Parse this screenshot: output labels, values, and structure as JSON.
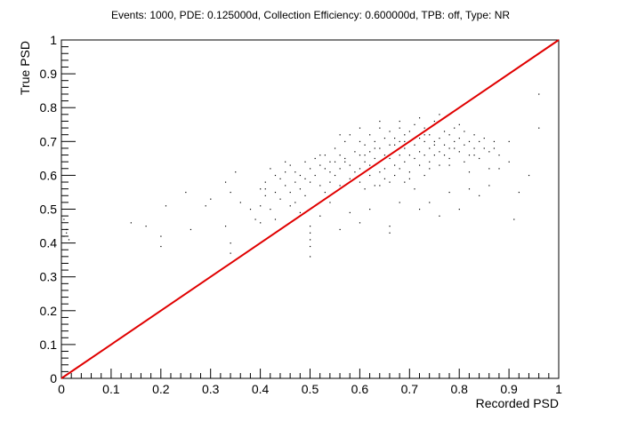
{
  "chart_data": {
    "type": "scatter",
    "title": "Events: 1000, PDE: 0.125000d, Collection Efficiency: 0.600000d, TPB: off, Type: NR",
    "xlabel": "Recorded PSD",
    "ylabel": "True PSD",
    "xlim": [
      0,
      1
    ],
    "ylim": [
      0,
      1
    ],
    "xticks": [
      "0",
      "0.1",
      "0.2",
      "0.3",
      "0.4",
      "0.5",
      "0.6",
      "0.7",
      "0.8",
      "0.9",
      "1"
    ],
    "yticks": [
      "0",
      "0.1",
      "0.2",
      "0.3",
      "0.4",
      "0.5",
      "0.6",
      "0.7",
      "0.8",
      "0.9",
      "1"
    ],
    "grid": false,
    "legend": "none",
    "marker_color": "#000000",
    "line_color": "#e00000",
    "series": [
      {
        "type": "scatter",
        "points": [
          [
            0.005,
            0.47
          ],
          [
            0.005,
            0.42
          ],
          [
            0.01,
            0.44
          ],
          [
            0.01,
            0.43
          ],
          [
            0.015,
            0.41
          ],
          [
            0.14,
            0.46
          ],
          [
            0.17,
            0.45
          ],
          [
            0.2,
            0.42
          ],
          [
            0.2,
            0.39
          ],
          [
            0.21,
            0.51
          ],
          [
            0.25,
            0.55
          ],
          [
            0.26,
            0.44
          ],
          [
            0.29,
            0.51
          ],
          [
            0.3,
            0.53
          ],
          [
            0.33,
            0.58
          ],
          [
            0.33,
            0.45
          ],
          [
            0.34,
            0.4
          ],
          [
            0.34,
            0.37
          ],
          [
            0.34,
            0.55
          ],
          [
            0.35,
            0.61
          ],
          [
            0.36,
            0.52
          ],
          [
            0.39,
            0.47
          ],
          [
            0.4,
            0.51
          ],
          [
            0.4,
            0.56
          ],
          [
            0.41,
            0.58
          ],
          [
            0.41,
            0.54
          ],
          [
            0.42,
            0.5
          ],
          [
            0.42,
            0.62
          ],
          [
            0.43,
            0.55
          ],
          [
            0.43,
            0.47
          ],
          [
            0.44,
            0.59
          ],
          [
            0.44,
            0.53
          ],
          [
            0.45,
            0.57
          ],
          [
            0.45,
            0.61
          ],
          [
            0.46,
            0.55
          ],
          [
            0.46,
            0.63
          ],
          [
            0.47,
            0.58
          ],
          [
            0.47,
            0.52
          ],
          [
            0.48,
            0.6
          ],
          [
            0.48,
            0.56
          ],
          [
            0.49,
            0.64
          ],
          [
            0.49,
            0.54
          ],
          [
            0.5,
            0.62
          ],
          [
            0.5,
            0.58
          ],
          [
            0.5,
            0.45
          ],
          [
            0.5,
            0.43
          ],
          [
            0.5,
            0.41
          ],
          [
            0.5,
            0.39
          ],
          [
            0.5,
            0.36
          ],
          [
            0.51,
            0.65
          ],
          [
            0.51,
            0.6
          ],
          [
            0.52,
            0.57
          ],
          [
            0.52,
            0.63
          ],
          [
            0.53,
            0.55
          ],
          [
            0.53,
            0.66
          ],
          [
            0.54,
            0.61
          ],
          [
            0.54,
            0.58
          ],
          [
            0.55,
            0.64
          ],
          [
            0.55,
            0.68
          ],
          [
            0.55,
            0.6
          ],
          [
            0.56,
            0.62
          ],
          [
            0.56,
            0.57
          ],
          [
            0.57,
            0.65
          ],
          [
            0.57,
            0.7
          ],
          [
            0.58,
            0.63
          ],
          [
            0.58,
            0.59
          ],
          [
            0.59,
            0.67
          ],
          [
            0.59,
            0.61
          ],
          [
            0.6,
            0.66
          ],
          [
            0.6,
            0.62
          ],
          [
            0.6,
            0.58
          ],
          [
            0.61,
            0.69
          ],
          [
            0.61,
            0.64
          ],
          [
            0.61,
            0.56
          ],
          [
            0.62,
            0.67
          ],
          [
            0.62,
            0.63
          ],
          [
            0.62,
            0.6
          ],
          [
            0.62,
            0.72
          ],
          [
            0.63,
            0.65
          ],
          [
            0.63,
            0.7
          ],
          [
            0.63,
            0.57
          ],
          [
            0.64,
            0.68
          ],
          [
            0.64,
            0.64
          ],
          [
            0.64,
            0.61
          ],
          [
            0.64,
            0.74
          ],
          [
            0.65,
            0.66
          ],
          [
            0.65,
            0.71
          ],
          [
            0.65,
            0.62
          ],
          [
            0.65,
            0.59
          ],
          [
            0.66,
            0.69
          ],
          [
            0.66,
            0.65
          ],
          [
            0.66,
            0.73
          ],
          [
            0.66,
            0.45
          ],
          [
            0.66,
            0.43
          ],
          [
            0.67,
            0.67
          ],
          [
            0.67,
            0.71
          ],
          [
            0.67,
            0.63
          ],
          [
            0.67,
            0.6
          ],
          [
            0.68,
            0.7
          ],
          [
            0.68,
            0.66
          ],
          [
            0.68,
            0.74
          ],
          [
            0.68,
            0.62
          ],
          [
            0.69,
            0.68
          ],
          [
            0.69,
            0.72
          ],
          [
            0.69,
            0.64
          ],
          [
            0.69,
            0.58
          ],
          [
            0.7,
            0.7
          ],
          [
            0.7,
            0.66
          ],
          [
            0.7,
            0.73
          ],
          [
            0.7,
            0.61
          ],
          [
            0.71,
            0.69
          ],
          [
            0.71,
            0.65
          ],
          [
            0.71,
            0.75
          ],
          [
            0.71,
            0.56
          ],
          [
            0.72,
            0.71
          ],
          [
            0.72,
            0.67
          ],
          [
            0.72,
            0.63
          ],
          [
            0.73,
            0.7
          ],
          [
            0.73,
            0.66
          ],
          [
            0.73,
            0.74
          ],
          [
            0.73,
            0.6
          ],
          [
            0.74,
            0.72
          ],
          [
            0.74,
            0.68
          ],
          [
            0.74,
            0.64
          ],
          [
            0.75,
            0.7
          ],
          [
            0.75,
            0.66
          ],
          [
            0.75,
            0.76
          ],
          [
            0.76,
            0.71
          ],
          [
            0.76,
            0.67
          ],
          [
            0.76,
            0.63
          ],
          [
            0.77,
            0.73
          ],
          [
            0.77,
            0.69
          ],
          [
            0.78,
            0.72
          ],
          [
            0.78,
            0.68
          ],
          [
            0.78,
            0.65
          ],
          [
            0.79,
            0.7
          ],
          [
            0.79,
            0.74
          ],
          [
            0.8,
            0.71
          ],
          [
            0.8,
            0.67
          ],
          [
            0.8,
            0.75
          ],
          [
            0.81,
            0.69
          ],
          [
            0.81,
            0.73
          ],
          [
            0.82,
            0.7
          ],
          [
            0.82,
            0.66
          ],
          [
            0.83,
            0.72
          ],
          [
            0.83,
            0.68
          ],
          [
            0.84,
            0.7
          ],
          [
            0.84,
            0.65
          ],
          [
            0.85,
            0.71
          ],
          [
            0.86,
            0.67
          ],
          [
            0.87,
            0.68
          ],
          [
            0.88,
            0.62
          ],
          [
            0.9,
            0.7
          ],
          [
            0.96,
            0.84
          ],
          [
            0.96,
            0.74
          ],
          [
            0.91,
            0.47
          ],
          [
            0.92,
            0.55
          ],
          [
            0.94,
            0.6
          ],
          [
            0.76,
            0.48
          ],
          [
            0.78,
            0.55
          ],
          [
            0.8,
            0.5
          ],
          [
            0.82,
            0.56
          ],
          [
            0.84,
            0.54
          ],
          [
            0.86,
            0.57
          ],
          [
            0.72,
            0.5
          ],
          [
            0.74,
            0.52
          ],
          [
            0.68,
            0.52
          ],
          [
            0.62,
            0.5
          ],
          [
            0.6,
            0.46
          ],
          [
            0.58,
            0.49
          ],
          [
            0.56,
            0.44
          ],
          [
            0.54,
            0.52
          ],
          [
            0.52,
            0.48
          ],
          [
            0.48,
            0.49
          ],
          [
            0.46,
            0.51
          ],
          [
            0.44,
            0.44
          ],
          [
            0.4,
            0.46
          ],
          [
            0.38,
            0.5
          ],
          [
            0.53,
            0.62
          ],
          [
            0.57,
            0.64
          ],
          [
            0.61,
            0.66
          ],
          [
            0.63,
            0.68
          ],
          [
            0.67,
            0.69
          ],
          [
            0.69,
            0.7
          ],
          [
            0.71,
            0.71
          ],
          [
            0.73,
            0.72
          ],
          [
            0.75,
            0.69
          ],
          [
            0.77,
            0.66
          ],
          [
            0.79,
            0.68
          ],
          [
            0.81,
            0.64
          ],
          [
            0.83,
            0.66
          ],
          [
            0.85,
            0.68
          ],
          [
            0.87,
            0.7
          ],
          [
            0.6,
            0.7
          ],
          [
            0.58,
            0.72
          ],
          [
            0.56,
            0.66
          ],
          [
            0.54,
            0.64
          ],
          [
            0.52,
            0.66
          ],
          [
            0.49,
            0.59
          ],
          [
            0.47,
            0.61
          ],
          [
            0.45,
            0.64
          ],
          [
            0.43,
            0.6
          ],
          [
            0.41,
            0.56
          ],
          [
            0.64,
            0.57
          ],
          [
            0.66,
            0.58
          ],
          [
            0.7,
            0.59
          ],
          [
            0.74,
            0.62
          ],
          [
            0.78,
            0.63
          ],
          [
            0.82,
            0.61
          ],
          [
            0.86,
            0.62
          ],
          [
            0.88,
            0.66
          ],
          [
            0.9,
            0.64
          ],
          [
            0.76,
            0.78
          ],
          [
            0.72,
            0.77
          ],
          [
            0.68,
            0.76
          ],
          [
            0.64,
            0.76
          ],
          [
            0.6,
            0.74
          ],
          [
            0.56,
            0.72
          ]
        ]
      },
      {
        "type": "line",
        "points": [
          [
            0,
            0
          ],
          [
            1,
            1
          ]
        ]
      }
    ]
  }
}
